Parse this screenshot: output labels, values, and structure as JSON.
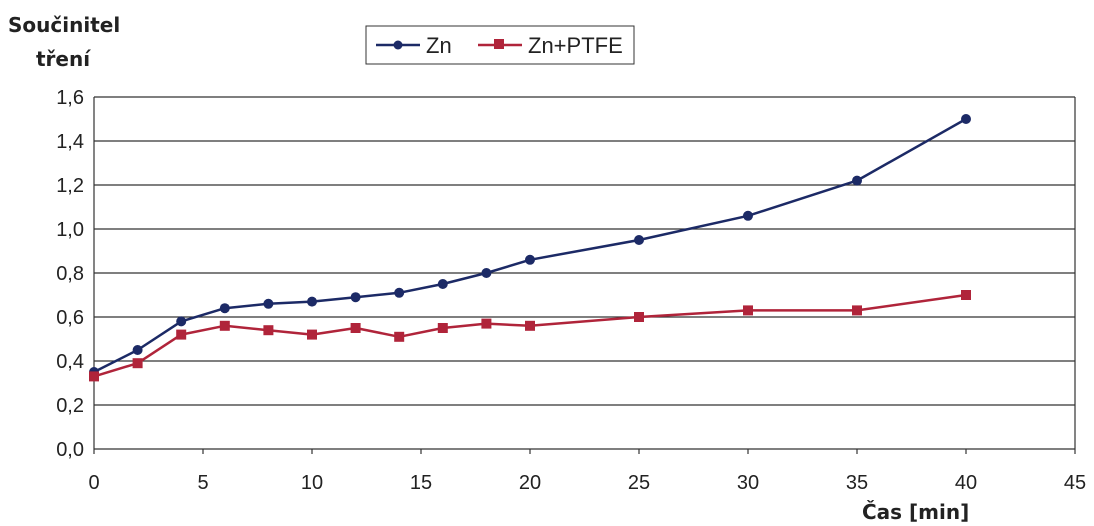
{
  "chart_data": {
    "type": "line",
    "ylabel_line1": "Součinitel",
    "ylabel_line2": "tření",
    "xlabel": "Čas [min]",
    "xlim": [
      0,
      45
    ],
    "ylim": [
      0,
      1.6
    ],
    "xticks": [
      "0",
      "5",
      "10",
      "15",
      "20",
      "25",
      "30",
      "35",
      "40",
      "45"
    ],
    "yticks": [
      "0,0",
      "0,2",
      "0,4",
      "0,6",
      "0,8",
      "1,0",
      "1,2",
      "1,4",
      "1,6"
    ],
    "grid": "horizontal",
    "legend_position": "top-center",
    "series": [
      {
        "name": "Zn",
        "color": "#1c2a66",
        "marker": "diamond",
        "x": [
          0,
          2,
          4,
          6,
          8,
          10,
          12,
          14,
          16,
          18,
          20,
          25,
          30,
          35,
          40
        ],
        "y": [
          0.35,
          0.45,
          0.58,
          0.64,
          0.66,
          0.67,
          0.69,
          0.71,
          0.75,
          0.8,
          0.86,
          0.95,
          1.06,
          1.22,
          1.5
        ]
      },
      {
        "name": "Zn+PTFE",
        "color": "#b0243a",
        "marker": "square",
        "x": [
          0,
          2,
          4,
          6,
          8,
          10,
          12,
          14,
          16,
          18,
          20,
          25,
          30,
          35,
          40
        ],
        "y": [
          0.33,
          0.39,
          0.52,
          0.56,
          0.54,
          0.52,
          0.55,
          0.51,
          0.55,
          0.57,
          0.56,
          0.6,
          0.63,
          0.63,
          0.7
        ]
      }
    ]
  }
}
